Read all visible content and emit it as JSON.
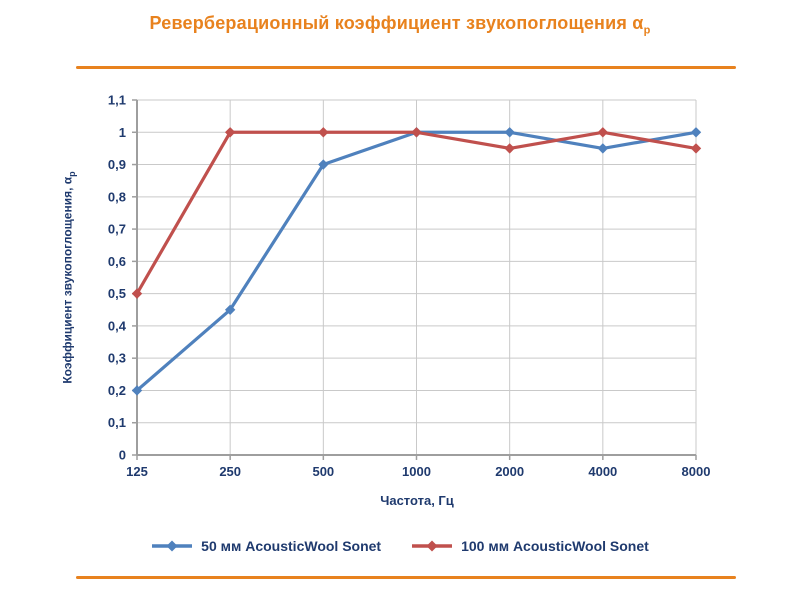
{
  "page": {
    "background": "#FFFFFF",
    "accent_color": "#E8821E",
    "text_color": "#1F3A6E",
    "title": "Реверберационный коэффициент звукопоглощения α",
    "title_sub": "р"
  },
  "chart_data": {
    "type": "line",
    "title": "Реверберационный коэффициент звукопоглощения αр",
    "categories": [
      "125",
      "250",
      "500",
      "1000",
      "2000",
      "4000",
      "8000"
    ],
    "series": [
      {
        "name": "50 мм AcousticWool Sonet",
        "color": "#4F81BD",
        "marker": "diamond",
        "values": [
          0.2,
          0.45,
          0.9,
          1.0,
          1.0,
          0.95,
          1.0
        ]
      },
      {
        "name": "100 мм AcousticWool Sonet",
        "color": "#C0504D",
        "marker": "diamond",
        "values": [
          0.5,
          1.0,
          1.0,
          1.0,
          0.95,
          1.0,
          0.95
        ]
      }
    ],
    "xlabel": "Частота, Гц",
    "ylabel": "Коэффициент звукопоглощения, α",
    "ylabel_sub": "р",
    "ylim": [
      0,
      1.1
    ],
    "ytick_step": 0.1,
    "ytick_labels": [
      "0",
      "0,1",
      "0,2",
      "0,3",
      "0,4",
      "0,5",
      "0,6",
      "0,7",
      "0,8",
      "0,9",
      "1",
      "1,1"
    ],
    "grid": true,
    "grid_color": "#C9C9C9",
    "axis_color": "#9E9E9E",
    "legend_position": "bottom"
  }
}
